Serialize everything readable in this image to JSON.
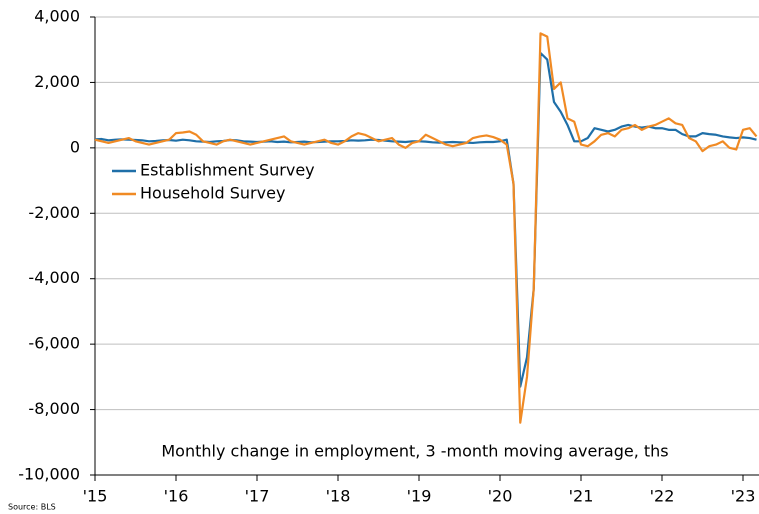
{
  "chart_data": {
    "type": "line",
    "annotation": "Monthly change in employment, 3 -month moving average, ths",
    "source": "Source: BLS",
    "categories": [
      "'15",
      null,
      null,
      null,
      null,
      null,
      null,
      null,
      null,
      null,
      null,
      null,
      "'16",
      null,
      null,
      null,
      null,
      null,
      null,
      null,
      null,
      null,
      null,
      null,
      "'17",
      null,
      null,
      null,
      null,
      null,
      null,
      null,
      null,
      null,
      null,
      null,
      "'18",
      null,
      null,
      null,
      null,
      null,
      null,
      null,
      null,
      null,
      null,
      null,
      "'19",
      null,
      null,
      null,
      null,
      null,
      null,
      null,
      null,
      null,
      null,
      null,
      "'20",
      null,
      null,
      null,
      null,
      null,
      null,
      null,
      null,
      null,
      null,
      null,
      "'21",
      null,
      null,
      null,
      null,
      null,
      null,
      null,
      null,
      null,
      null,
      null,
      "'22",
      null,
      null,
      null,
      null,
      null,
      null,
      null,
      null,
      null,
      null,
      null,
      "'23",
      null,
      null
    ],
    "series": [
      {
        "name": "Establishment Survey",
        "color": "#1f6fa8",
        "values": [
          260,
          270,
          230,
          250,
          260,
          250,
          240,
          230,
          200,
          210,
          230,
          240,
          220,
          250,
          230,
          200,
          190,
          180,
          200,
          210,
          240,
          230,
          200,
          190,
          180,
          190,
          200,
          180,
          190,
          170,
          180,
          190,
          170,
          180,
          190,
          200,
          200,
          210,
          230,
          220,
          230,
          250,
          240,
          220,
          200,
          190,
          180,
          200,
          200,
          190,
          170,
          160,
          170,
          180,
          170,
          160,
          150,
          170,
          180,
          180,
          200,
          250,
          -1100,
          -7300,
          -6400,
          -4300,
          2900,
          2700,
          1400,
          1100,
          700,
          200,
          200,
          300,
          600,
          550,
          500,
          550,
          650,
          700,
          650,
          620,
          650,
          600,
          600,
          550,
          550,
          420,
          350,
          350,
          450,
          420,
          400,
          350,
          320,
          300,
          320,
          300,
          250
        ]
      },
      {
        "name": "Household Survey",
        "color": "#f08a24",
        "values": [
          250,
          200,
          150,
          200,
          250,
          300,
          200,
          150,
          100,
          150,
          200,
          250,
          450,
          470,
          500,
          400,
          200,
          150,
          100,
          200,
          250,
          200,
          150,
          100,
          150,
          200,
          250,
          300,
          350,
          200,
          150,
          100,
          150,
          200,
          250,
          150,
          100,
          200,
          350,
          450,
          400,
          300,
          200,
          250,
          300,
          100,
          0,
          150,
          200,
          400,
          300,
          200,
          100,
          50,
          100,
          150,
          300,
          350,
          380,
          330,
          250,
          100,
          -1100,
          -8400,
          -7000,
          -4300,
          3500,
          3400,
          1800,
          2000,
          900,
          800,
          100,
          50,
          200,
          400,
          450,
          350,
          550,
          600,
          700,
          550,
          650,
          700,
          800,
          900,
          750,
          700,
          300,
          200,
          -100,
          50,
          100,
          200,
          0,
          -50,
          550,
          600,
          350
        ]
      }
    ],
    "ylim": [
      -10000,
      4000
    ],
    "yticks": [
      {
        "value": -10000,
        "label": "-10,000"
      },
      {
        "value": -8000,
        "label": "-8,000"
      },
      {
        "value": -6000,
        "label": "-6,000"
      },
      {
        "value": -4000,
        "label": "-4,000"
      },
      {
        "value": -2000,
        "label": "-2,000"
      },
      0,
      {
        "value": 2000,
        "label": "2,000"
      },
      {
        "value": 4000,
        "label": "4,000"
      }
    ],
    "grid": true,
    "legend": "upper left"
  }
}
